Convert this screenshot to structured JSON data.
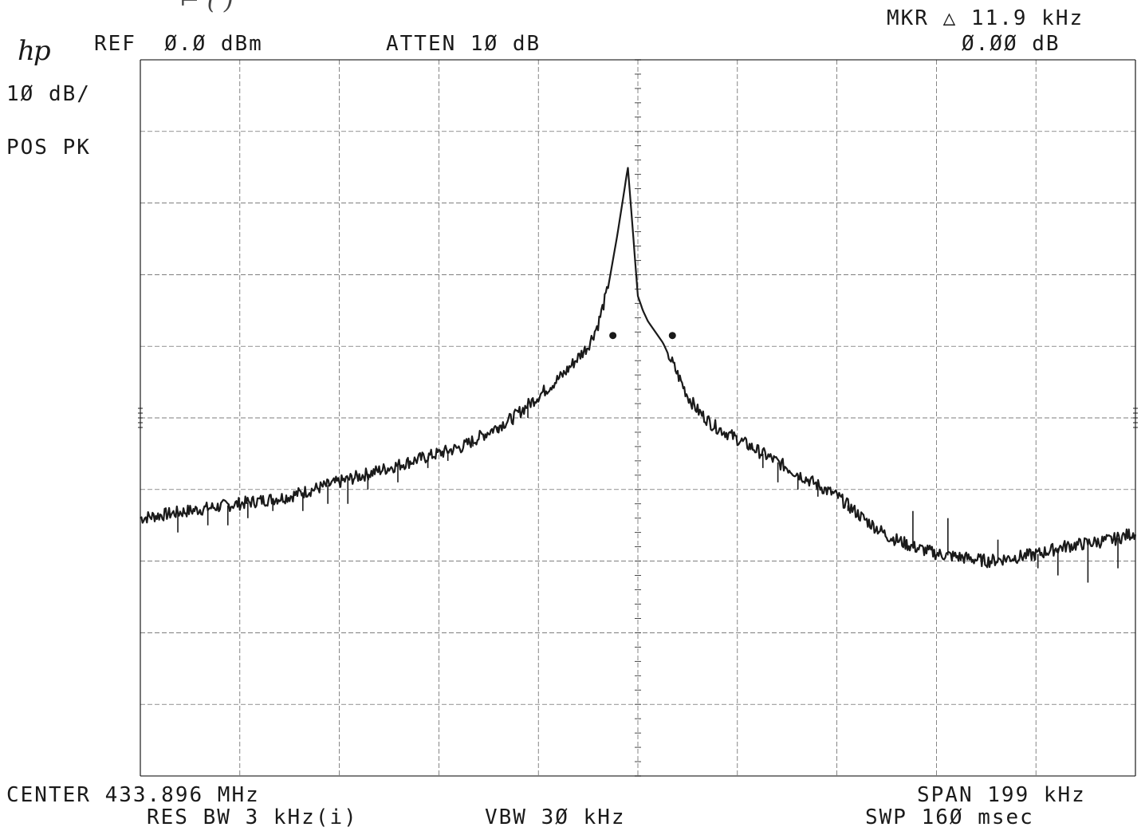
{
  "logo": "hp",
  "header": {
    "ref": "REF  Ø.Ø dBm",
    "atten": "ATTEN 1Ø dB",
    "marker_line1": "MKR △ 11.9 kHz",
    "marker_line2": "Ø.ØØ dB"
  },
  "side": {
    "scale": "1Ø dB/",
    "detector": "POS PK"
  },
  "footer": {
    "center": "CENTER 433.896 MHz",
    "span": "SPAN 199 kHz",
    "res_bw": "RES BW 3 kHz(i)",
    "vbw": "VBW 3Ø kHz",
    "sweep": "SWP 16Ø msec"
  },
  "chart_data": {
    "type": "line",
    "title": "",
    "xlabel": "",
    "ylabel": "",
    "x_units": "kHz offset from center (433.896 MHz)",
    "y_units": "dBm",
    "xlim": [
      -99.5,
      99.5
    ],
    "ylim": [
      -100,
      0
    ],
    "grid": true,
    "grid_divisions": {
      "x": 10,
      "y": 10
    },
    "color": "#1a1a1a",
    "marker_delta_khz": 11.9,
    "marker_delta_db": 0.0,
    "markers": [
      {
        "x": -5.0,
        "y": -38.5
      },
      {
        "x": 6.9,
        "y": -38.5
      }
    ],
    "series": [
      {
        "x": [
          -99.5,
          -90,
          -80,
          -70,
          -60,
          -50,
          -40,
          -35,
          -30,
          -25,
          -20,
          -15,
          -10,
          -8,
          -6,
          -4,
          -2,
          0,
          1,
          2,
          3,
          4,
          5,
          6,
          8,
          10,
          12,
          15,
          20,
          25,
          30,
          35,
          40,
          45,
          50,
          55,
          60,
          65,
          70,
          75,
          80,
          85,
          90,
          95,
          99.5
        ],
        "y": [
          -64,
          -63,
          -62,
          -61,
          -59,
          -57,
          -55,
          -54,
          -52,
          -50,
          -47,
          -44,
          -40,
          -37,
          -32,
          -24,
          -15,
          -33,
          -35,
          -36.5,
          -37.5,
          -38.5,
          -39.5,
          -41,
          -44,
          -47,
          -49,
          -51,
          -53,
          -55,
          -57,
          -59,
          -61,
          -64,
          -66.5,
          -68,
          -69,
          -69.5,
          -70,
          -69.5,
          -69,
          -68,
          -67.5,
          -67,
          -66
        ]
      }
    ],
    "dips": [
      {
        "x": -92,
        "y": -66
      },
      {
        "x": -86,
        "y": -65
      },
      {
        "x": -82,
        "y": -65
      },
      {
        "x": -78,
        "y": -64
      },
      {
        "x": -73,
        "y": -63
      },
      {
        "x": -67,
        "y": -63
      },
      {
        "x": -62,
        "y": -62
      },
      {
        "x": -58,
        "y": -62
      },
      {
        "x": -54,
        "y": -60
      },
      {
        "x": -48,
        "y": -59
      },
      {
        "x": -42,
        "y": -57
      },
      {
        "x": -38,
        "y": -56
      },
      {
        "x": -33,
        "y": -54
      },
      {
        "x": -28,
        "y": -52
      },
      {
        "x": -22,
        "y": -50
      },
      {
        "x": 25,
        "y": -57
      },
      {
        "x": 28,
        "y": -59
      },
      {
        "x": 32,
        "y": -60
      },
      {
        "x": 36,
        "y": -61
      },
      {
        "x": 42,
        "y": -63
      },
      {
        "x": 55,
        "y": -63
      },
      {
        "x": 62,
        "y": -64
      },
      {
        "x": 72,
        "y": -67
      },
      {
        "x": 80,
        "y": -71
      },
      {
        "x": 84,
        "y": -72
      },
      {
        "x": 90,
        "y": -73
      },
      {
        "x": 96,
        "y": -71
      }
    ]
  }
}
